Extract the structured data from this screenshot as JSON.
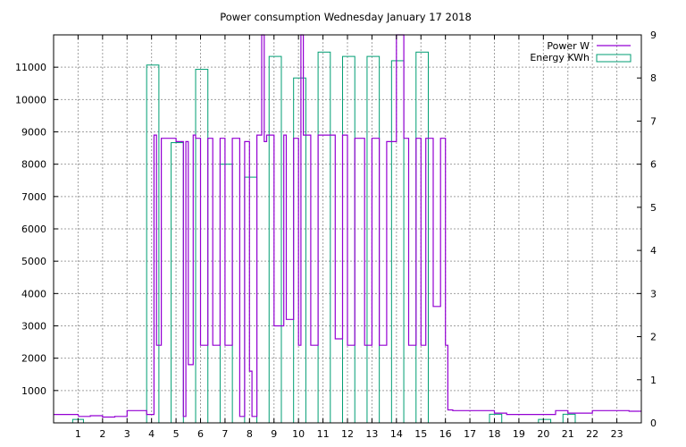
{
  "chart_data": {
    "type": "line",
    "title": "Power consumption Wednesday January 17 2018",
    "xlabel": "",
    "ylabel": "",
    "y2label": "",
    "grid": true,
    "legend_position": "top-right",
    "xlim": [
      0,
      24
    ],
    "ylim": [
      0,
      12000
    ],
    "y2lim": [
      0,
      9
    ],
    "x_ticks": [
      1,
      2,
      3,
      4,
      5,
      6,
      7,
      8,
      9,
      10,
      11,
      12,
      13,
      14,
      15,
      16,
      17,
      18,
      19,
      20,
      21,
      22,
      23
    ],
    "y_ticks": [
      1000,
      2000,
      3000,
      4000,
      5000,
      6000,
      7000,
      8000,
      9000,
      10000,
      11000
    ],
    "y2_ticks": [
      0,
      1,
      2,
      3,
      4,
      5,
      6,
      7,
      8,
      9
    ],
    "colors": {
      "power": "#9400d3",
      "energy": "#009e73"
    },
    "series": [
      {
        "name": "Power W",
        "axis": "left",
        "style": "line",
        "x": [
          0,
          1,
          1.02,
          1.5,
          1.5,
          2,
          2,
          2.5,
          2.5,
          3,
          3,
          3.8,
          3.8,
          4.1,
          4.1,
          4.2,
          4.2,
          4.4,
          4.4,
          5,
          5,
          5.3,
          5.3,
          5.4,
          5.4,
          5.5,
          5.5,
          5.7,
          5.7,
          5.8,
          5.8,
          6,
          6,
          6.3,
          6.3,
          6.5,
          6.5,
          6.8,
          6.8,
          7,
          7,
          7.3,
          7.3,
          7.6,
          7.6,
          7.8,
          7.8,
          8,
          8,
          8.1,
          8.1,
          8.3,
          8.3,
          8.5,
          8.5,
          8.6,
          8.6,
          8.7,
          8.7,
          9,
          9,
          9.4,
          9.4,
          9.5,
          9.5,
          9.8,
          9.8,
          10,
          10,
          10.1,
          10.1,
          10.2,
          10.2,
          10.5,
          10.5,
          10.8,
          10.8,
          11,
          11,
          11.5,
          11.5,
          11.8,
          11.8,
          12,
          12,
          12.3,
          12.3,
          12.7,
          12.7,
          13,
          13,
          13.3,
          13.3,
          13.6,
          13.6,
          14,
          14,
          14.3,
          14.3,
          14.5,
          14.5,
          14.8,
          14.8,
          15,
          15,
          15.2,
          15.2,
          15.5,
          15.5,
          15.8,
          15.8,
          16,
          16,
          16.1,
          16.1,
          16.3,
          16.3,
          17,
          17,
          17.5,
          17.5,
          18,
          18,
          18.5,
          18.5,
          19,
          19,
          19.5,
          19.5,
          20,
          20,
          20.5,
          20.5,
          21,
          21,
          21.5,
          21.5,
          22,
          22,
          22.5,
          22.5,
          23,
          23,
          23.5,
          23.5,
          24
        ],
        "y": [
          260,
          260,
          200,
          200,
          220,
          220,
          180,
          180,
          200,
          200,
          380,
          380,
          260,
          260,
          8900,
          8900,
          2400,
          2400,
          8800,
          8800,
          8700,
          8700,
          200,
          200,
          8700,
          8700,
          1800,
          1800,
          8900,
          8900,
          8800,
          8800,
          2400,
          2400,
          8800,
          8800,
          2400,
          2400,
          8800,
          8800,
          2400,
          2400,
          8800,
          8800,
          200,
          200,
          8700,
          8700,
          1600,
          1600,
          200,
          200,
          8900,
          8900,
          12000,
          12000,
          8700,
          8700,
          8900,
          8900,
          3000,
          3000,
          8900,
          8900,
          3200,
          3200,
          8800,
          8800,
          2400,
          2400,
          12000,
          12000,
          8900,
          8900,
          2400,
          2400,
          8900,
          8900,
          8900,
          8900,
          2600,
          2600,
          8900,
          8900,
          2400,
          2400,
          8800,
          8800,
          2400,
          2400,
          8800,
          8800,
          2400,
          2400,
          8700,
          8700,
          12000,
          12000,
          8800,
          8800,
          2400,
          2400,
          8800,
          8800,
          2400,
          2400,
          8800,
          8800,
          3600,
          3600,
          8800,
          8800,
          2400,
          2400,
          400,
          400,
          380,
          380,
          380,
          380,
          380,
          380,
          300,
          300,
          260,
          260,
          260,
          260,
          260,
          260,
          260,
          260,
          380,
          380,
          300,
          300,
          300,
          300,
          380,
          380,
          380,
          380,
          380,
          380,
          360,
          360
        ]
      },
      {
        "name": "Energy KWh",
        "axis": "right",
        "style": "bars",
        "bars": [
          {
            "x0": 0.78,
            "x1": 1.22,
            "v": 0.08
          },
          {
            "x0": 3.8,
            "x1": 4.3,
            "v": 8.3
          },
          {
            "x0": 4.8,
            "x1": 5.3,
            "v": 6.5
          },
          {
            "x0": 5.8,
            "x1": 6.3,
            "v": 8.2
          },
          {
            "x0": 6.8,
            "x1": 7.3,
            "v": 6.0
          },
          {
            "x0": 7.8,
            "x1": 8.3,
            "v": 5.7
          },
          {
            "x0": 8.8,
            "x1": 9.3,
            "v": 8.5
          },
          {
            "x0": 9.8,
            "x1": 10.3,
            "v": 8.0
          },
          {
            "x0": 10.8,
            "x1": 11.3,
            "v": 8.6
          },
          {
            "x0": 11.8,
            "x1": 12.3,
            "v": 8.5
          },
          {
            "x0": 12.8,
            "x1": 13.3,
            "v": 8.5
          },
          {
            "x0": 13.8,
            "x1": 14.3,
            "v": 8.4
          },
          {
            "x0": 14.8,
            "x1": 15.3,
            "v": 8.6
          },
          {
            "x0": 17.8,
            "x1": 18.3,
            "v": 0.2
          },
          {
            "x0": 19.8,
            "x1": 20.3,
            "v": 0.08
          },
          {
            "x0": 20.8,
            "x1": 21.3,
            "v": 0.2
          }
        ]
      }
    ]
  }
}
